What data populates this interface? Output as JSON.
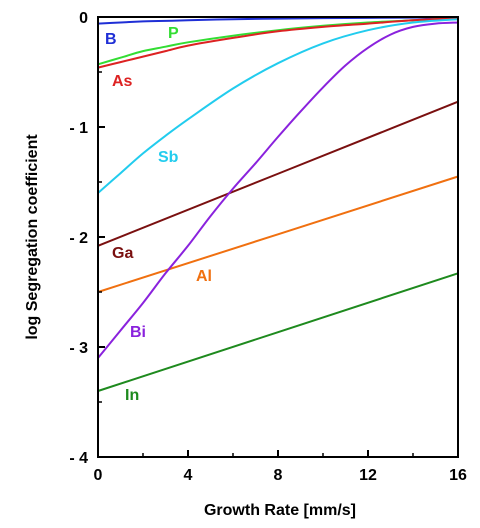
{
  "chart_data": {
    "type": "line",
    "xlabel": "Growth Rate [mm/s]",
    "ylabel": "log Segregation coefficient",
    "xlim": [
      0,
      16
    ],
    "ylim": [
      -4,
      0
    ],
    "xticks": [
      0,
      4,
      8,
      12,
      16
    ],
    "xtick_labels": [
      "0",
      "4",
      "8",
      "12",
      "16"
    ],
    "yticks": [
      0,
      -1,
      -2,
      -3,
      -4
    ],
    "ytick_labels": [
      "0",
      "- 1",
      "- 2",
      "- 3",
      "- 4"
    ],
    "grid": false,
    "legend": "none",
    "series": [
      {
        "name": "B",
        "color": "#1f2fd6",
        "x": [
          0,
          1,
          2,
          3,
          4,
          6,
          8,
          10,
          12,
          14,
          16
        ],
        "y": [
          -0.06,
          -0.05,
          -0.04,
          -0.035,
          -0.03,
          -0.02,
          -0.015,
          -0.01,
          -0.008,
          -0.005,
          -0.003
        ]
      },
      {
        "name": "P",
        "color": "#33dd33",
        "x": [
          0,
          1,
          2,
          3,
          4,
          6,
          8,
          10,
          12,
          14,
          16
        ],
        "y": [
          -0.43,
          -0.37,
          -0.31,
          -0.27,
          -0.23,
          -0.17,
          -0.12,
          -0.08,
          -0.05,
          -0.03,
          -0.01
        ]
      },
      {
        "name": "As",
        "color": "#dd2222",
        "x": [
          0,
          1,
          2,
          3,
          4,
          6,
          8,
          10,
          12,
          14,
          16
        ],
        "y": [
          -0.46,
          -0.41,
          -0.36,
          -0.31,
          -0.26,
          -0.19,
          -0.13,
          -0.09,
          -0.06,
          -0.03,
          -0.01
        ]
      },
      {
        "name": "Sb",
        "color": "#22ccee",
        "x": [
          0,
          1,
          2,
          3,
          4,
          6,
          8,
          10,
          12,
          14,
          16
        ],
        "y": [
          -1.6,
          -1.42,
          -1.24,
          -1.08,
          -0.93,
          -0.65,
          -0.42,
          -0.24,
          -0.12,
          -0.05,
          -0.02
        ]
      },
      {
        "name": "Ga",
        "color": "#7a1010",
        "x": [
          0,
          16
        ],
        "y": [
          -2.08,
          -0.77
        ]
      },
      {
        "name": "Al",
        "color": "#f07010",
        "x": [
          0,
          16
        ],
        "y": [
          -2.5,
          -1.45
        ]
      },
      {
        "name": "Bi",
        "color": "#8a22dd",
        "x": [
          0,
          1,
          2,
          3,
          4,
          5,
          6,
          7,
          8,
          9,
          10,
          11,
          12,
          13,
          14,
          15,
          16
        ],
        "y": [
          -3.1,
          -2.85,
          -2.6,
          -2.33,
          -2.08,
          -1.81,
          -1.56,
          -1.33,
          -1.09,
          -0.86,
          -0.64,
          -0.44,
          -0.28,
          -0.16,
          -0.09,
          -0.06,
          -0.05
        ]
      },
      {
        "name": "In",
        "color": "#1e8a1e",
        "x": [
          0,
          16
        ],
        "y": [
          -3.4,
          -2.33
        ]
      }
    ]
  }
}
